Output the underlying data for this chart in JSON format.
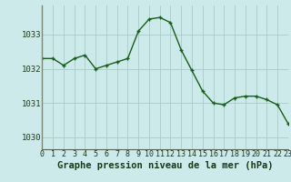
{
  "hours": [
    0,
    1,
    2,
    3,
    4,
    5,
    6,
    7,
    8,
    9,
    10,
    11,
    12,
    13,
    14,
    15,
    16,
    17,
    18,
    19,
    20,
    21,
    22,
    23
  ],
  "pressure": [
    1032.3,
    1032.3,
    1032.1,
    1032.3,
    1032.4,
    1032.0,
    1032.1,
    1032.2,
    1032.3,
    1033.1,
    1033.45,
    1033.5,
    1033.35,
    1032.55,
    1031.95,
    1031.35,
    1031.0,
    1030.95,
    1031.15,
    1031.2,
    1031.2,
    1031.1,
    1030.95,
    1030.4
  ],
  "line_color": "#1a5c1a",
  "marker": "+",
  "marker_size": 3,
  "marker_edge_width": 1.0,
  "bg_color": "#cceaea",
  "grid_color": "#aacaca",
  "xlabel": "Graphe pression niveau de la mer (hPa)",
  "xlabel_fontsize": 7.5,
  "ytick_labels": [
    "1030",
    "1031",
    "1032",
    "1033"
  ],
  "ytick_values": [
    1030,
    1031,
    1032,
    1033
  ],
  "ylim": [
    1029.65,
    1033.85
  ],
  "xlim": [
    0,
    23
  ],
  "xtick_fontsize": 6.0,
  "ytick_fontsize": 6.5,
  "line_width": 1.0,
  "left_border_color": "#778877",
  "bottom_border_color": "#556655"
}
